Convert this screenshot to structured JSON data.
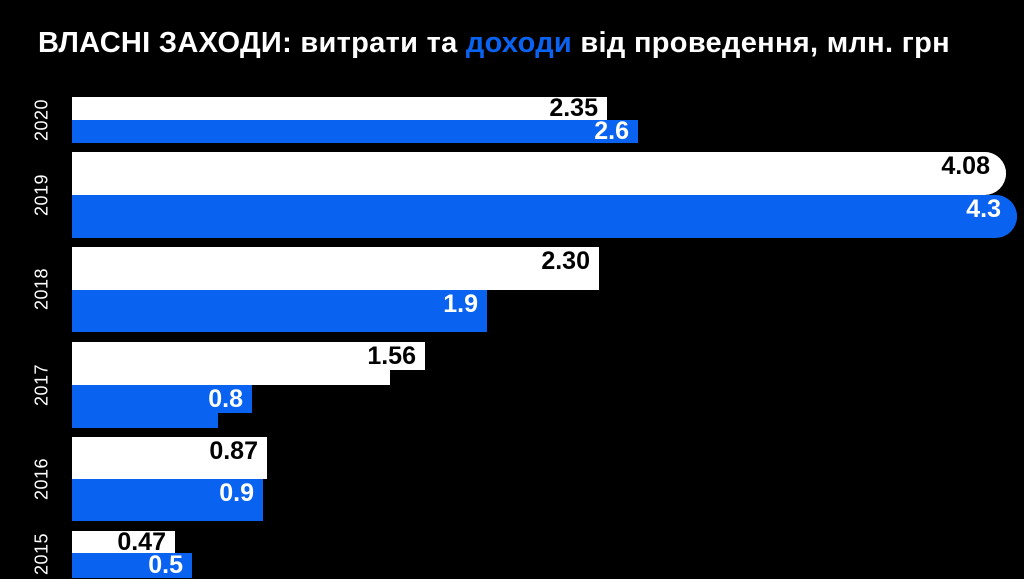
{
  "title": {
    "part1": "ВЛАСНІ ЗАХОДИ: витрати та ",
    "highlight": "доходи",
    "part2": " від проведення, млн. грн"
  },
  "colors": {
    "background": "#000000",
    "expenses_bar": "#FFFFFF",
    "income_bar": "#0A63F0",
    "expenses_label_text": "#000000",
    "income_label_text": "#FFFFFF",
    "title_text": "#FFFFFF"
  },
  "chart_data": {
    "type": "bar",
    "orientation": "horizontal",
    "title": "ВЛАСНІ ЗАХОДИ: витрати та доходи від проведення, млн. грн",
    "unit": "млн. грн",
    "categories": [
      "2020",
      "2019",
      "2018",
      "2017",
      "2016",
      "2015"
    ],
    "series": [
      {
        "name": "витрати",
        "color": "#FFFFFF",
        "values": [
          2.35,
          4.08,
          2.3,
          1.56,
          0.87,
          0.47
        ],
        "labels": [
          "2.35",
          "4.08",
          "2.30",
          "1.56",
          "0.87",
          "0.47"
        ]
      },
      {
        "name": "доходи",
        "color": "#0A63F0",
        "values": [
          2.6,
          4.3,
          1.9,
          0.8,
          0.9,
          0.5
        ],
        "labels": [
          "2.6",
          "4.3",
          "1.9",
          "0.8",
          "0.9",
          "0.5"
        ]
      }
    ],
    "value_labels": "inside-end",
    "axis_visible": false,
    "grid": false,
    "legend": "inline-in-title"
  }
}
